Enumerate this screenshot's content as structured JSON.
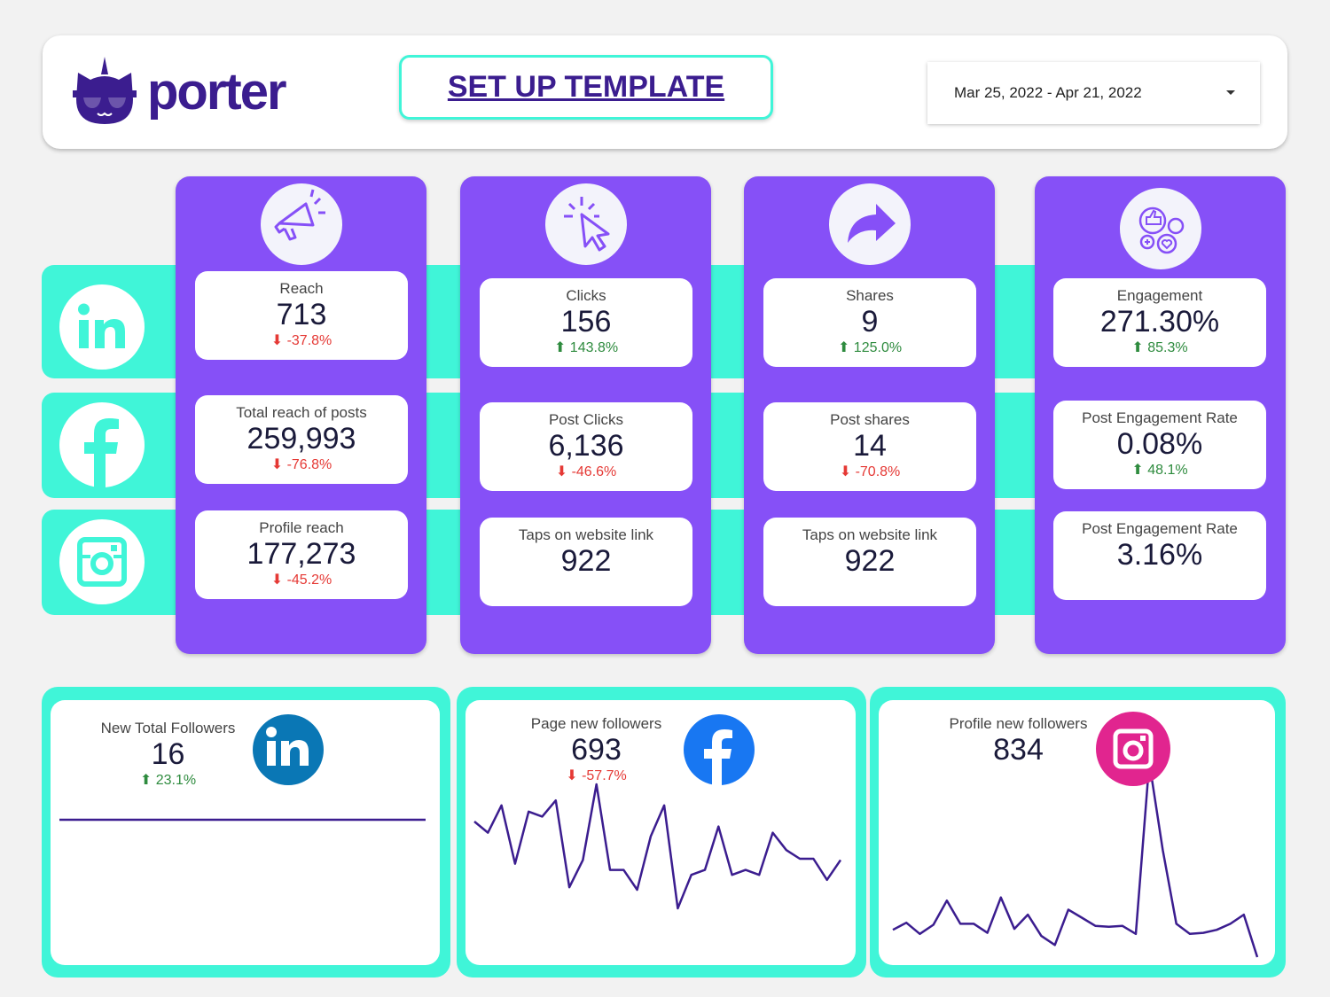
{
  "header": {
    "brand": "porter",
    "setup_button": "SET UP TEMPLATE",
    "date_range": "Mar 25, 2022 - Apr 21, 2022"
  },
  "colors": {
    "accent_purple": "#8650f7",
    "teal": "#40f5d8",
    "brand_dark": "#3b1d8f",
    "negative": "#e53935",
    "positive": "#2e8b3e"
  },
  "social_rows": [
    {
      "icon": "linkedin-icon"
    },
    {
      "icon": "facebook-icon"
    },
    {
      "icon": "instagram-icon"
    }
  ],
  "columns": [
    {
      "icon": "megaphone-icon",
      "cards": [
        {
          "label": "Reach",
          "value": "713",
          "change": "-37.8%",
          "dir": "down"
        },
        {
          "label": "Total reach of posts",
          "value": "259,993",
          "change": "-76.8%",
          "dir": "down"
        },
        {
          "label": "Profile reach",
          "value": "177,273",
          "change": "-45.2%",
          "dir": "down"
        }
      ]
    },
    {
      "icon": "cursor-click-icon",
      "cards": [
        {
          "label": "Clicks",
          "value": "156",
          "change": "143.8%",
          "dir": "up"
        },
        {
          "label": "Post Clicks",
          "value": "6,136",
          "change": "-46.6%",
          "dir": "down"
        },
        {
          "label": "Taps on website link",
          "value": "922"
        }
      ]
    },
    {
      "icon": "share-arrow-icon",
      "cards": [
        {
          "label": "Shares",
          "value": "9",
          "change": "125.0%",
          "dir": "up"
        },
        {
          "label": "Post shares",
          "value": "14",
          "change": "-70.8%",
          "dir": "down"
        },
        {
          "label": "Taps on website link",
          "value": "922"
        }
      ]
    },
    {
      "icon": "engagement-icon",
      "cards": [
        {
          "label": "Engagement",
          "value": "271.30%",
          "change": "85.3%",
          "dir": "up"
        },
        {
          "label": "Post Engagement Rate",
          "value": "0.08%",
          "change": "48.1%",
          "dir": "up"
        },
        {
          "label": "Post Engagement Rate",
          "value": "3.16%"
        }
      ]
    }
  ],
  "followers": [
    {
      "label": "New Total Followers",
      "value": "16",
      "change": "23.1%",
      "dir": "up",
      "icon": "linkedin-icon",
      "icon_color": "#0a77b5",
      "trend": [
        1,
        1,
        1,
        1,
        1,
        1,
        1,
        1,
        1,
        1,
        1,
        1,
        1,
        1,
        1,
        1,
        1,
        1,
        1,
        1,
        1,
        1,
        1,
        1,
        1,
        1,
        1,
        1
      ]
    },
    {
      "label": "Page new followers",
      "value": "693",
      "change": "-57.7%",
      "dir": "down",
      "icon": "facebook-icon",
      "icon_color": "#1877f2",
      "trend": [
        77,
        68,
        90,
        43,
        85,
        81,
        94,
        24,
        46,
        107,
        38,
        38,
        22,
        65,
        90,
        7,
        34,
        38,
        73,
        34,
        38,
        34,
        68,
        54,
        47,
        47,
        30,
        46
      ]
    },
    {
      "label": "Profile new followers",
      "value": "834",
      "icon": "instagram-icon",
      "icon_color": "#e1258f",
      "trend": [
        31,
        38,
        27,
        36,
        60,
        37,
        37,
        28,
        63,
        32,
        46,
        25,
        16,
        51,
        43,
        35,
        34,
        35,
        27,
        197,
        110,
        37,
        27,
        28,
        31,
        37,
        46,
        4
      ]
    }
  ]
}
